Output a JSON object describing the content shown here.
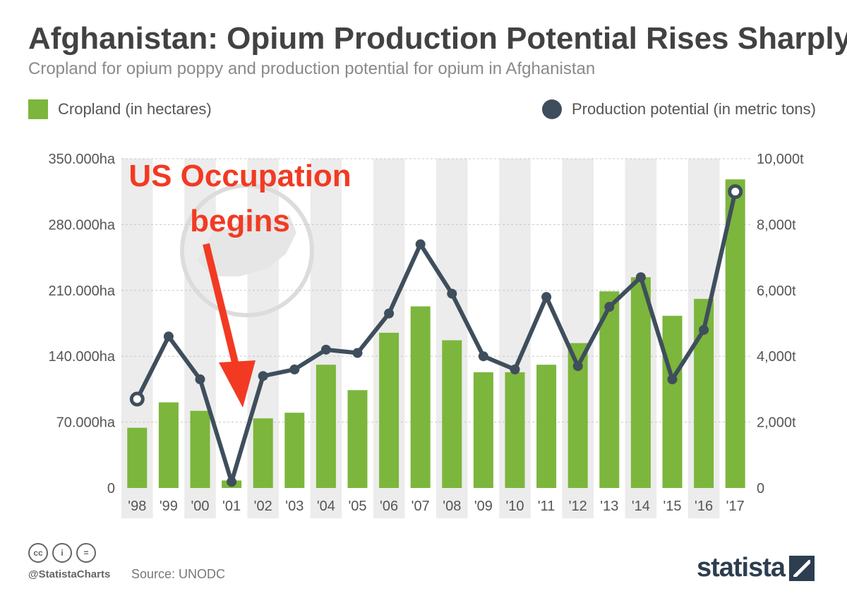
{
  "header": {
    "title": "Afghanistan: Opium Production Potential Rises Sharply",
    "subtitle": "Cropland for opium poppy and production potential for opium in Afghanistan"
  },
  "legend": {
    "bars_label": "Cropland (in hectares)",
    "line_label": "Production potential (in metric tons)"
  },
  "annotation": {
    "line1": "US Occupation",
    "line2": "begins"
  },
  "footer": {
    "handle": "@StatistaCharts",
    "source": "Source: UNODC",
    "brand": "statista",
    "license_icons": [
      "cc",
      "i",
      "="
    ]
  },
  "colors": {
    "bar": "#7cb63c",
    "line": "#3f4e5c",
    "annotation": "#f23a23",
    "band": "#ececec"
  },
  "chart_data": {
    "type": "bar+line",
    "title": "Afghanistan: Opium Production Potential Rises Sharply",
    "categories": [
      "'98",
      "'99",
      "'00",
      "'01",
      "'02",
      "'03",
      "'04",
      "'05",
      "'06",
      "'07",
      "'08",
      "'09",
      "'10",
      "'11",
      "'12",
      "'13",
      "'14",
      "'15",
      "'16",
      "'17"
    ],
    "series": [
      {
        "name": "Cropland (in hectares)",
        "type": "bar",
        "axis": "left",
        "values": [
          64000,
          91000,
          82000,
          8000,
          74000,
          80000,
          131000,
          104000,
          165000,
          193000,
          157000,
          123000,
          123000,
          131000,
          154000,
          209000,
          224000,
          183000,
          201000,
          328000
        ]
      },
      {
        "name": "Production potential (in metric tons)",
        "type": "line",
        "axis": "right",
        "values": [
          2700,
          4600,
          3300,
          185,
          3400,
          3600,
          4200,
          4100,
          5300,
          7400,
          5900,
          4000,
          3600,
          5800,
          3700,
          5500,
          6400,
          3300,
          4800,
          9000
        ]
      }
    ],
    "y_left": {
      "range": [
        0,
        350000
      ],
      "tick_values": [
        0,
        70000,
        140000,
        210000,
        280000,
        350000
      ],
      "tick_labels": [
        "0",
        "70.000ha",
        "140.000ha",
        "210.000ha",
        "280.000ha",
        "350.000ha"
      ]
    },
    "y_right": {
      "range": [
        0,
        10000
      ],
      "tick_values": [
        0,
        2000,
        4000,
        6000,
        8000,
        10000
      ],
      "tick_labels": [
        "0",
        "2,000t",
        "4,000t",
        "6,000t",
        "8,000t",
        "10,000t"
      ]
    },
    "highlighted_markers": [
      "'98",
      "'17"
    ],
    "gridlines": true
  }
}
